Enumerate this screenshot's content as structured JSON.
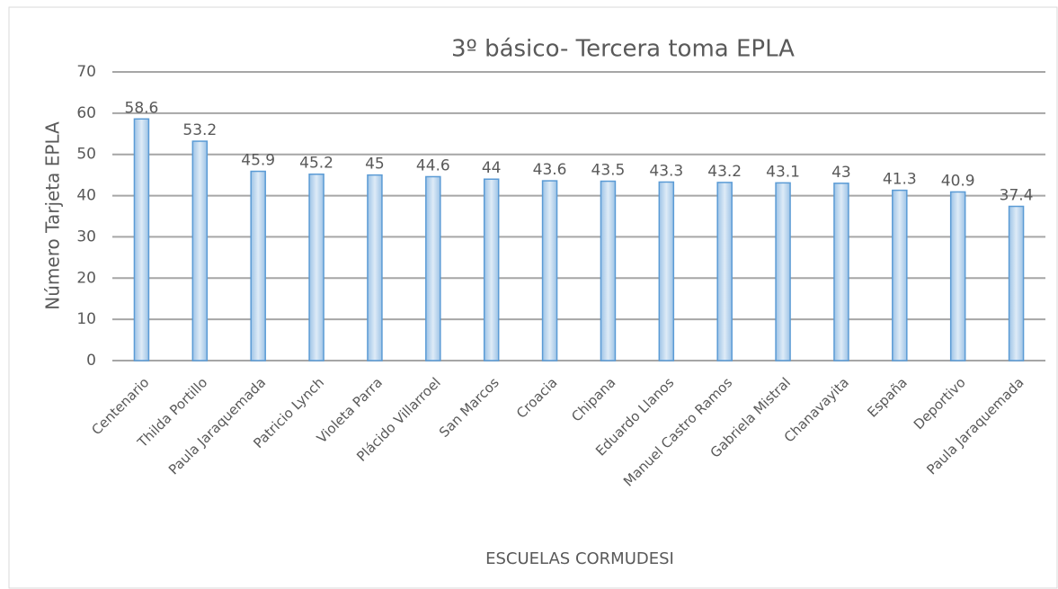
{
  "chart_data": {
    "type": "bar",
    "title": "3º básico- Tercera toma EPLA",
    "x_label": "ESCUELAS CORMUDESI",
    "y_label": "Número Tarjeta EPLA",
    "categories": [
      "Centenario",
      "Thilda Portillo",
      "Paula Jaraquemada",
      "Patricio Lynch",
      "Violeta Parra",
      "Plácido Villarroel",
      "San Marcos",
      "Croacia",
      "Chipana",
      "Eduardo Llanos",
      "Manuel Castro Ramos",
      "Gabriela Mistral",
      "Chanavayita",
      "España",
      "Deportivo",
      "Paula Jaraquemada"
    ],
    "values": [
      58.6,
      53.2,
      45.9,
      45.2,
      45,
      44.6,
      44,
      43.6,
      43.5,
      43.3,
      43.2,
      43.1,
      43,
      41.3,
      40.9,
      37.4
    ],
    "color": "#bdd7ee",
    "ylim": [
      0,
      70
    ],
    "yticks": [
      0,
      10,
      20,
      30,
      40,
      50,
      60,
      70
    ],
    "grid": true
  }
}
